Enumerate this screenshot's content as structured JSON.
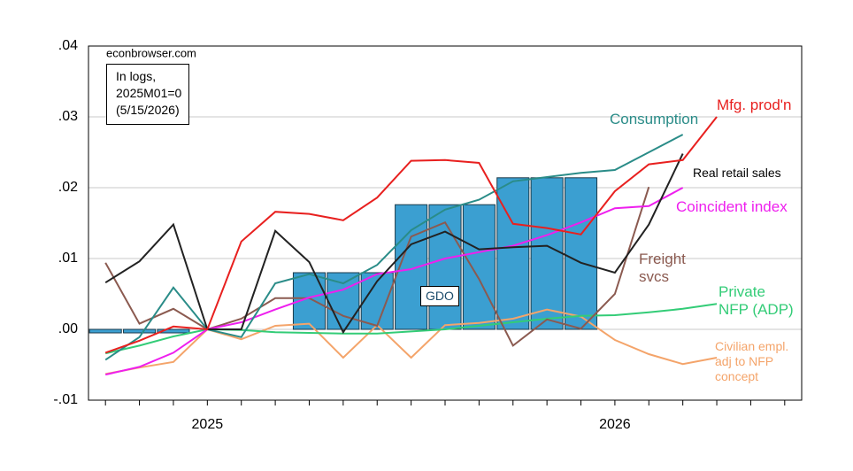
{
  "chart_data": {
    "type": "line",
    "source": "econbrowser.com",
    "note": [
      "In logs,",
      "2025M01=0",
      "(5/15/2026)"
    ],
    "categories": [
      null,
      null,
      null,
      "2025",
      null,
      null,
      null,
      null,
      null,
      null,
      null,
      null,
      null,
      null,
      null,
      "2026",
      null,
      null,
      null,
      null,
      null
    ],
    "ylim": [
      -0.01,
      0.04
    ],
    "yticks": [
      {
        "value": -0.01,
        "label": "-.01"
      },
      {
        "value": 0,
        "label": ".00"
      },
      {
        "value": 0.01,
        "label": ".01"
      },
      {
        "value": 0.02,
        "label": ".02"
      },
      {
        "value": 0.03,
        "label": ".03"
      },
      {
        "value": 0.04,
        "label": ".04"
      }
    ],
    "grid": true,
    "series": [
      {
        "name": "GDO",
        "kind": "bar",
        "color": "#3b9fd1",
        "values": [
          -0.0005,
          -0.0005,
          -0.0005,
          null,
          null,
          null,
          0.008,
          0.008,
          0.008,
          0.0176,
          0.0176,
          0.0176,
          0.0214,
          0.0214,
          0.0214,
          null,
          null,
          null,
          null,
          null,
          null
        ]
      },
      {
        "name": "Civilian empl.\nadj to NFP\nconcept",
        "color": "#f4a46a",
        "values": [
          -0.0063,
          -0.0054,
          -0.0046,
          0,
          -0.0014,
          0.0005,
          0.0008,
          -0.004,
          0.0006,
          -0.004,
          0.0006,
          0.0009,
          0.0015,
          0.0028,
          0.0018,
          -0.0015,
          -0.0035,
          -0.0049,
          -0.004,
          null,
          null
        ]
      },
      {
        "name": "Private\nNFP (ADP)",
        "color": "#33cc77",
        "values": [
          -0.0034,
          -0.0023,
          -0.001,
          0,
          -0.0001,
          -0.0004,
          -0.0005,
          -0.0006,
          -0.0006,
          -0.0003,
          0,
          0.0005,
          0.001,
          0.0015,
          0.0019,
          0.002,
          0.0024,
          0.0029,
          0.0036,
          null,
          null
        ]
      },
      {
        "name": "Freight\nsvcs",
        "color": "#8b5a50",
        "values": [
          0.0094,
          0.0008,
          0.0029,
          0,
          0.0015,
          0.0044,
          0.0044,
          0.0019,
          0.0005,
          0.0131,
          0.0151,
          0.0071,
          -0.0023,
          0.0014,
          0.0001,
          0.005,
          0.0201,
          null,
          null,
          null,
          null
        ]
      },
      {
        "name": "Coincident index",
        "color": "#ee1fee",
        "values": [
          -0.0064,
          -0.0053,
          -0.0033,
          0,
          0.001,
          0.0028,
          0.0045,
          0.0056,
          0.0078,
          0.0085,
          0.01,
          0.0109,
          0.0118,
          0.0133,
          0.0151,
          0.0171,
          0.0174,
          0.02,
          null,
          null,
          null
        ]
      },
      {
        "name": "Consumption",
        "color": "#2a8c88",
        "values": [
          -0.0043,
          -0.0011,
          0.0059,
          0,
          -0.0011,
          0.0065,
          0.0078,
          0.0065,
          0.0091,
          0.014,
          0.0169,
          0.0183,
          0.0209,
          0.0215,
          0.0221,
          0.0225,
          0.025,
          0.0275,
          null,
          null,
          null
        ]
      },
      {
        "name": "Real retail sales",
        "color": "#222222",
        "values": [
          0.0066,
          0.0096,
          0.0148,
          0,
          0,
          0.0139,
          0.0095,
          -0.0004,
          0.0068,
          0.012,
          0.0138,
          0.0113,
          0.0116,
          0.0118,
          0.0094,
          0.008,
          0.0148,
          0.0248,
          null,
          null,
          null
        ]
      },
      {
        "name": "Mfg. prod'n",
        "color": "#e8201f",
        "values": [
          -0.0033,
          -0.0016,
          0.0004,
          0,
          0.0124,
          0.0166,
          0.0163,
          0.0154,
          0.0186,
          0.0238,
          0.0239,
          0.0235,
          0.0149,
          0.0143,
          0.0134,
          0.0195,
          0.0233,
          0.0239,
          0.03,
          null,
          null
        ]
      }
    ]
  }
}
